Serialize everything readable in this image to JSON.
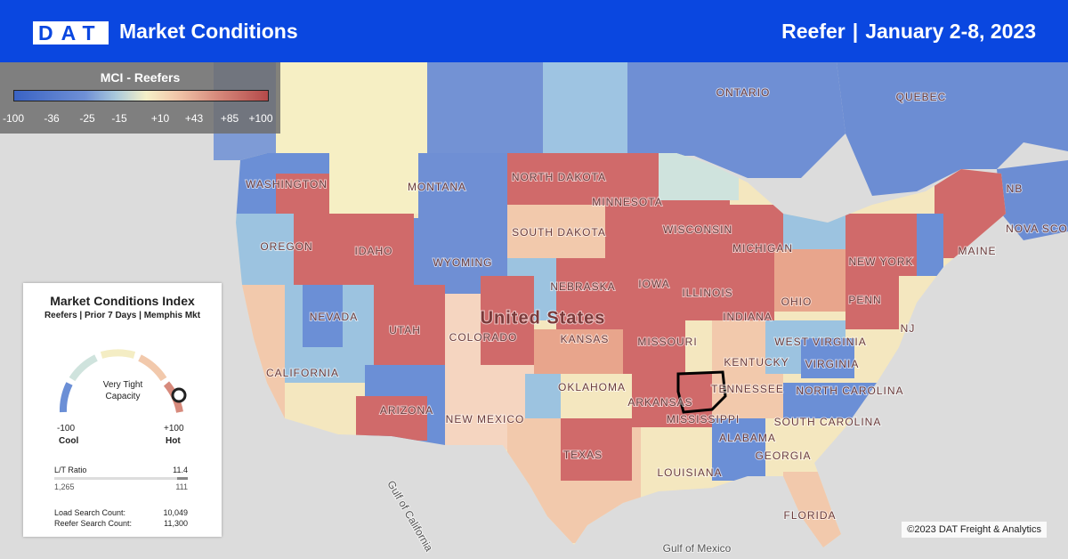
{
  "header": {
    "logo": "DAT",
    "title": "Market Conditions",
    "equipment": "Reefer",
    "separator": "|",
    "dates": "January 2-8, 2023"
  },
  "legend": {
    "title": "MCI - Reefers",
    "ticks": [
      "-100",
      "-36",
      "-25",
      "-15",
      "+10",
      "+43",
      "+85",
      "+100"
    ]
  },
  "panel": {
    "title": "Market Conditions Index",
    "subtitle": "Reefers | Prior 7 Days | Memphis Mkt",
    "gauge": {
      "status": "Very Tight Capacity",
      "min": "-100",
      "min_label": "Cool",
      "max": "+100",
      "max_label": "Hot"
    },
    "lt_ratio": {
      "label": "L/T Ratio",
      "value": "11.4",
      "loads": "1,265",
      "trucks": "111"
    },
    "counts": [
      {
        "label": "Load Search Count:",
        "value": "10,049"
      },
      {
        "label": "Reefer Search Count:",
        "value": "11,300"
      }
    ]
  },
  "map": {
    "labels": [
      "ONTARIO",
      "QUEBEC",
      "WASHINGTON",
      "MONTANA",
      "NORTH DAKOTA",
      "MINNESOTA",
      "SOUTH DAKOTA",
      "OREGON",
      "IDAHO",
      "WYOMING",
      "WISCONSIN",
      "MICHIGAN",
      "NEBRASKA",
      "IOWA",
      "NEVADA",
      "UTAH",
      "COLORADO",
      "United States",
      "KANSAS",
      "MISSOURI",
      "ILLINOIS",
      "INDIANA",
      "OHIO",
      "PENN",
      "NEW YORK",
      "MAINE",
      "NB",
      "NOVA SCO",
      "NJ",
      "CALIFORNIA",
      "ARIZONA",
      "NEW MEXICO",
      "OKLAHOMA",
      "ARKANSAS",
      "TEXAS",
      "LOUISIANA",
      "MISSISSIPPI",
      "ALABAMA",
      "GEORGIA",
      "FLORIDA",
      "SOUTH CAROLINA",
      "NORTH CAROLINA",
      "VIRGINIA",
      "WEST VIRGINIA",
      "KENTUCKY",
      "TENNESSEE",
      "Gulf of California",
      "Gulf of Mexico"
    ]
  },
  "copyright": "©2023 DAT Freight & Analytics"
}
